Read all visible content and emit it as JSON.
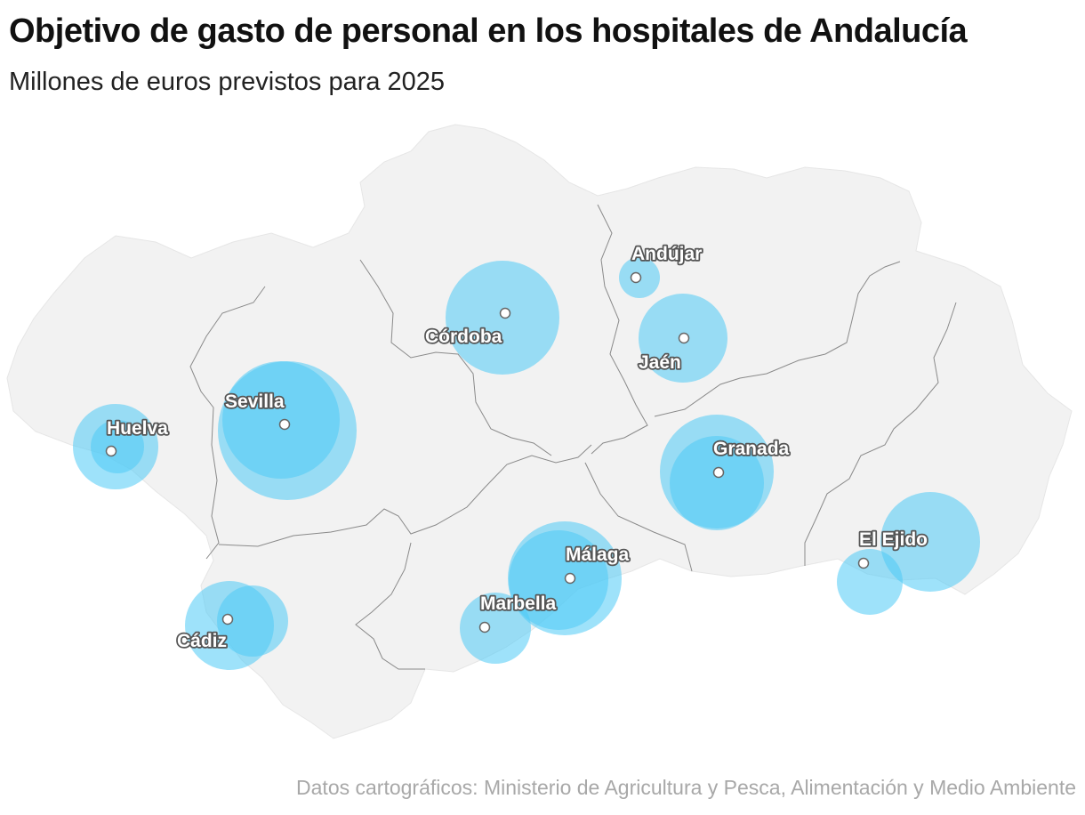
{
  "header": {
    "title": "Objetivo de gasto de personal en los hospitales de Andalucía",
    "subtitle": "Millones de euros previstos para 2025"
  },
  "footer": {
    "source": "Datos cartográficos: Ministerio de Agricultura y Pesca, Alimentación y Medio Ambiente"
  },
  "colors": {
    "land": "#f2f2f2",
    "border": "#8a8a8a",
    "bubble": "#4ecbf5",
    "dot_fill": "#ffffff",
    "dot_stroke": "#666666"
  },
  "map": {
    "region": "Andalucía",
    "cities": [
      {
        "name": "Huelva",
        "label": "Huelva"
      },
      {
        "name": "Sevilla",
        "label": "Sevilla"
      },
      {
        "name": "Córdoba",
        "label": "Córdoba"
      },
      {
        "name": "Andújar",
        "label": "Andújar"
      },
      {
        "name": "Jaén",
        "label": "Jaén"
      },
      {
        "name": "Granada",
        "label": "Granada"
      },
      {
        "name": "Málaga",
        "label": "Málaga"
      },
      {
        "name": "Marbella",
        "label": "Marbella"
      },
      {
        "name": "Cádiz",
        "label": "Cádiz"
      },
      {
        "name": "El Ejido",
        "label": "El Ejido"
      }
    ]
  }
}
